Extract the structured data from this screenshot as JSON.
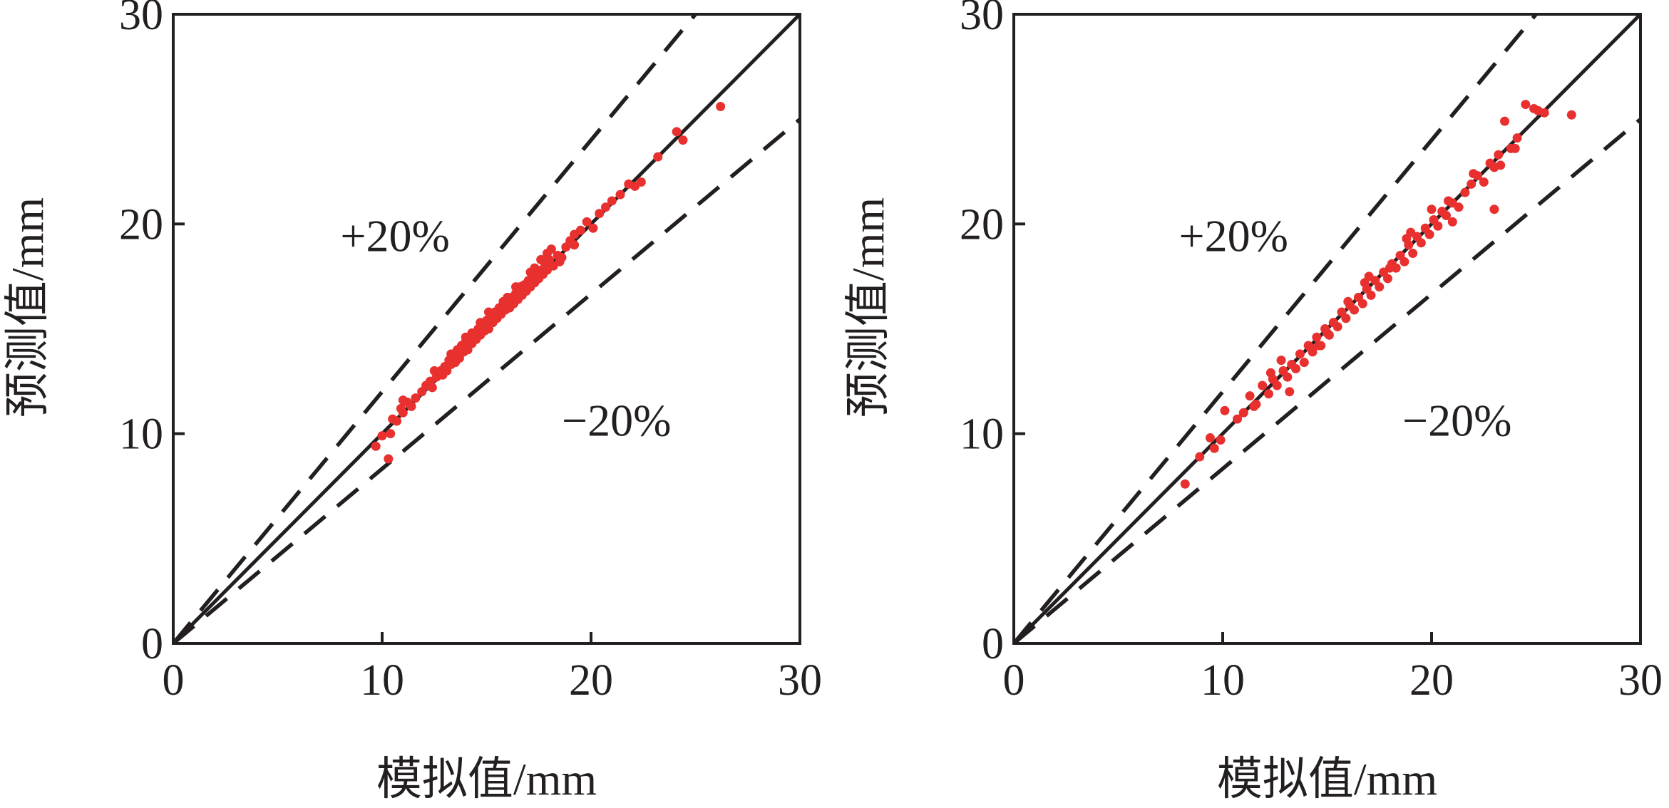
{
  "colors": {
    "frame": "#231f20",
    "reference_lines": "#231f20",
    "points": "#e8302f",
    "background": "#ffffff"
  },
  "chart_data": [
    {
      "type": "scatter",
      "title": "",
      "xlabel": "模拟值/mm",
      "ylabel": "预测值/mm",
      "xlim": [
        0,
        30
      ],
      "ylim": [
        0,
        30
      ],
      "xticks": [
        "0",
        "10",
        "20",
        "30"
      ],
      "yticks": [
        "0",
        "10",
        "20",
        "30"
      ],
      "grid": false,
      "reference_lines": [
        {
          "kind": "solid",
          "slope": 1.0
        },
        {
          "kind": "dashed",
          "slope": 1.2,
          "label": "+20%"
        },
        {
          "kind": "dashed",
          "slope": 0.833,
          "label": "−20%"
        }
      ],
      "annotations": [
        "+20%",
        "−20%"
      ],
      "series": [
        {
          "x": [
            9.7,
            10.0,
            10.3,
            10.5,
            10.7,
            10.9,
            11.0,
            11.2,
            11.4,
            11.6,
            11.9,
            12.1,
            12.3,
            12.4,
            12.6,
            12.8,
            12.9,
            13.0,
            13.1,
            13.2,
            13.3,
            13.4,
            13.5,
            13.6,
            13.7,
            13.8,
            13.9,
            14.0,
            14.1,
            14.2,
            14.3,
            14.4,
            14.5,
            14.6,
            14.7,
            14.8,
            14.9,
            15.0,
            15.1,
            15.2,
            15.3,
            15.4,
            15.5,
            15.6,
            15.7,
            15.8,
            15.9,
            16.0,
            16.1,
            16.2,
            16.3,
            16.4,
            16.5,
            16.6,
            16.7,
            16.8,
            16.9,
            17.0,
            17.1,
            17.2,
            17.3,
            17.4,
            17.5,
            17.6,
            17.7,
            17.8,
            17.9,
            18.0,
            18.2,
            18.4,
            18.6,
            18.8,
            19.0,
            19.2,
            19.5,
            19.8,
            20.1,
            20.4,
            20.7,
            21.0,
            21.4,
            21.8,
            22.1,
            22.4,
            23.2,
            24.1,
            24.4,
            26.2,
            10.4,
            11.0,
            12.5,
            13.3,
            14.0,
            14.7,
            15.3,
            16.0,
            16.6,
            17.3,
            17.9,
            18.5,
            19.2,
            13.6,
            14.3,
            15.1,
            15.8,
            16.4,
            17.1,
            17.6,
            18.1
          ],
          "y": [
            9.4,
            9.9,
            8.8,
            10.7,
            10.6,
            11.2,
            11.0,
            11.5,
            11.3,
            11.7,
            12.0,
            12.3,
            12.5,
            12.2,
            12.7,
            13.0,
            12.8,
            13.2,
            13.0,
            13.5,
            13.3,
            13.8,
            13.4,
            13.9,
            13.6,
            14.2,
            13.9,
            14.4,
            14.0,
            14.6,
            14.3,
            14.8,
            14.5,
            15.0,
            14.7,
            15.2,
            14.9,
            15.4,
            15.0,
            15.6,
            15.3,
            15.8,
            15.5,
            16.0,
            15.7,
            16.2,
            15.9,
            16.4,
            16.0,
            16.5,
            16.2,
            16.7,
            16.4,
            16.9,
            16.6,
            17.1,
            16.8,
            17.3,
            17.0,
            17.5,
            17.2,
            17.6,
            17.4,
            17.8,
            17.6,
            18.1,
            17.8,
            18.3,
            18.0,
            18.5,
            18.4,
            18.9,
            19.2,
            19.0,
            19.7,
            20.1,
            19.8,
            20.5,
            20.8,
            21.1,
            21.4,
            21.9,
            21.8,
            22.0,
            23.2,
            24.4,
            24.0,
            25.6,
            10.0,
            11.6,
            13.0,
            13.8,
            14.6,
            15.3,
            15.6,
            16.5,
            17.0,
            17.9,
            18.6,
            18.2,
            19.5,
            14.0,
            14.8,
            15.8,
            16.3,
            17.0,
            17.7,
            18.3,
            18.8
          ]
        }
      ]
    },
    {
      "type": "scatter",
      "title": "",
      "xlabel": "模拟值/mm",
      "ylabel": "预测值/mm",
      "xlim": [
        0,
        30
      ],
      "ylim": [
        0,
        30
      ],
      "xticks": [
        "0",
        "10",
        "20",
        "30"
      ],
      "yticks": [
        "0",
        "10",
        "20",
        "30"
      ],
      "grid": false,
      "reference_lines": [
        {
          "kind": "solid",
          "slope": 1.0
        },
        {
          "kind": "dashed",
          "slope": 1.2,
          "label": "+20%"
        },
        {
          "kind": "dashed",
          "slope": 0.833,
          "label": "−20%"
        }
      ],
      "annotations": [
        "+20%",
        "−20%"
      ],
      "series": [
        {
          "x": [
            8.2,
            8.9,
            9.4,
            9.6,
            9.9,
            10.1,
            10.7,
            11.0,
            11.3,
            11.6,
            11.9,
            12.2,
            12.4,
            12.6,
            12.9,
            13.1,
            13.3,
            13.5,
            13.7,
            13.9,
            14.1,
            14.3,
            14.5,
            14.7,
            14.9,
            15.1,
            15.3,
            15.5,
            15.7,
            15.9,
            16.1,
            16.3,
            16.5,
            16.7,
            16.9,
            17.1,
            17.3,
            17.5,
            17.7,
            17.9,
            18.1,
            18.3,
            18.5,
            18.7,
            18.9,
            19.1,
            19.3,
            19.5,
            19.7,
            19.9,
            20.1,
            20.3,
            20.5,
            20.7,
            21.0,
            21.3,
            21.6,
            21.9,
            22.2,
            22.5,
            22.8,
            23.0,
            23.2,
            23.5,
            23.8,
            24.1,
            24.5,
            24.9,
            25.1,
            25.4,
            26.7,
            11.5,
            12.3,
            13.2,
            14.2,
            15.0,
            16.0,
            17.0,
            18.0,
            19.0,
            20.0,
            21.0,
            22.0,
            23.0,
            24.0,
            12.8,
            14.6,
            16.8,
            18.8,
            20.8,
            23.3
          ],
          "y": [
            7.6,
            8.9,
            9.8,
            9.3,
            9.7,
            11.1,
            10.7,
            11.0,
            11.8,
            11.4,
            12.3,
            11.9,
            12.6,
            12.3,
            13.0,
            12.7,
            13.3,
            13.1,
            13.8,
            13.4,
            14.2,
            13.9,
            14.6,
            14.2,
            15.0,
            14.7,
            15.3,
            15.1,
            15.8,
            15.5,
            16.1,
            15.9,
            16.5,
            16.2,
            16.9,
            16.6,
            17.3,
            17.0,
            17.7,
            17.4,
            18.1,
            17.9,
            18.5,
            18.2,
            19.0,
            18.6,
            19.4,
            19.1,
            19.8,
            19.5,
            20.2,
            19.9,
            20.6,
            20.4,
            21.0,
            20.8,
            21.5,
            21.9,
            22.3,
            22.0,
            22.9,
            22.7,
            23.3,
            24.9,
            23.6,
            24.1,
            25.7,
            25.5,
            25.4,
            25.3,
            25.2,
            11.3,
            12.9,
            12.0,
            14.1,
            14.8,
            16.3,
            17.5,
            17.9,
            19.6,
            20.7,
            20.1,
            22.4,
            20.7,
            23.6,
            13.5,
            14.2,
            17.2,
            19.3,
            21.1,
            22.8
          ]
        }
      ]
    }
  ]
}
